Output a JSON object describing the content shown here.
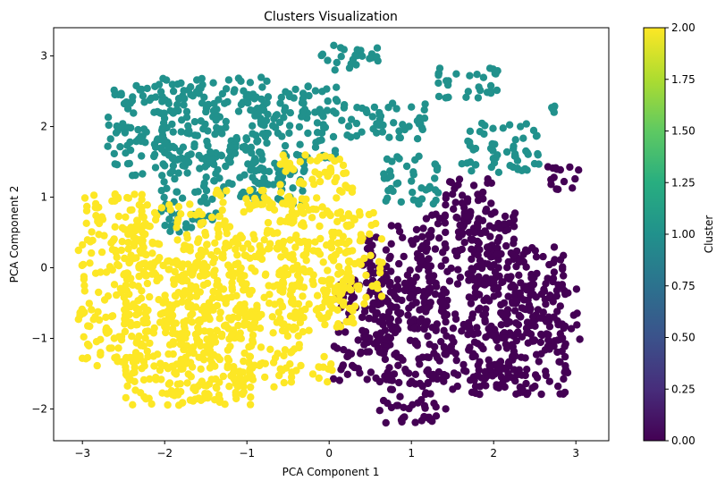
{
  "chart_data": {
    "type": "scatter",
    "title": "Clusters Visualization",
    "xlabel": "PCA Component 1",
    "ylabel": "PCA Component 2",
    "xlim": [
      -3.35,
      3.4
    ],
    "ylim": [
      -2.45,
      3.4
    ],
    "xticks": [
      -3,
      -2,
      -1,
      0,
      1,
      2,
      3
    ],
    "xtick_labels": [
      "−3",
      "−2",
      "−1",
      "0",
      "1",
      "2",
      "3"
    ],
    "yticks": [
      -2,
      -1,
      0,
      1,
      2,
      3
    ],
    "ytick_labels": [
      "−2",
      "−1",
      "0",
      "1",
      "2",
      "3"
    ],
    "grid": false,
    "colormap": "viridis",
    "colorbar": {
      "label": "Cluster",
      "range": [
        0.0,
        2.0
      ],
      "ticks": [
        0.0,
        0.25,
        0.5,
        0.75,
        1.0,
        1.25,
        1.5,
        1.75,
        2.0
      ],
      "tick_labels": [
        "0.00",
        "0.25",
        "0.50",
        "0.75",
        "1.00",
        "1.25",
        "1.50",
        "1.75",
        "2.00"
      ]
    },
    "series": [
      {
        "cluster": 0,
        "color": "#440154",
        "regions": [
          {
            "x_range": [
              0.05,
              0.75
            ],
            "y_range": [
              -1.6,
              -0.05
            ]
          },
          {
            "x_range": [
              0.6,
              1.45
            ],
            "y_range": [
              -2.2,
              -0.2
            ]
          },
          {
            "x_range": [
              0.4,
              1.2
            ],
            "y_range": [
              -0.9,
              0.6
            ]
          },
          {
            "x_range": [
              1.1,
              2.3
            ],
            "y_range": [
              -1.8,
              0.8
            ]
          },
          {
            "x_range": [
              1.4,
              2.0
            ],
            "y_range": [
              0.2,
              1.3
            ]
          },
          {
            "x_range": [
              1.7,
              2.9
            ],
            "y_range": [
              -1.8,
              0.3
            ]
          },
          {
            "x_range": [
              2.35,
              3.05
            ],
            "y_range": [
              -1.2,
              -0.2
            ]
          },
          {
            "x_range": [
              2.6,
              3.1
            ],
            "y_range": [
              1.1,
              1.45
            ]
          }
        ]
      },
      {
        "cluster": 1,
        "color": "#21918c",
        "regions": [
          {
            "x_range": [
              -2.7,
              -1.7
            ],
            "y_range": [
              1.3,
              2.6
            ]
          },
          {
            "x_range": [
              -2.05,
              -1.35
            ],
            "y_range": [
              0.5,
              2.7
            ]
          },
          {
            "x_range": [
              -1.45,
              -0.75
            ],
            "y_range": [
              1.0,
              2.7
            ]
          },
          {
            "x_range": [
              -0.95,
              -0.25
            ],
            "y_range": [
              0.9,
              2.6
            ]
          },
          {
            "x_range": [
              -0.35,
              0.1
            ],
            "y_range": [
              1.5,
              2.6
            ]
          },
          {
            "x_range": [
              -0.1,
              0.65
            ],
            "y_range": [
              2.8,
              3.17
            ]
          },
          {
            "x_range": [
              0.15,
              1.2
            ],
            "y_range": [
              1.8,
              2.35
            ]
          },
          {
            "x_range": [
              0.65,
              1.35
            ],
            "y_range": [
              0.9,
              1.6
            ]
          },
          {
            "x_range": [
              1.3,
              2.1
            ],
            "y_range": [
              2.4,
              2.85
            ]
          },
          {
            "x_range": [
              1.6,
              2.55
            ],
            "y_range": [
              1.35,
              2.05
            ]
          },
          {
            "x_range": [
              2.7,
              2.75
            ],
            "y_range": [
              2.2,
              2.3
            ]
          }
        ]
      },
      {
        "cluster": 2,
        "color": "#fde725",
        "regions": [
          {
            "x_range": [
              -3.05,
              -2.2
            ],
            "y_range": [
              -1.4,
              1.05
            ]
          },
          {
            "x_range": [
              -2.5,
              -1.4
            ],
            "y_range": [
              -1.95,
              0.9
            ]
          },
          {
            "x_range": [
              -2.0,
              -0.9
            ],
            "y_range": [
              -1.95,
              0.3
            ]
          },
          {
            "x_range": [
              -1.4,
              -0.3
            ],
            "y_range": [
              -1.7,
              1.1
            ]
          },
          {
            "x_range": [
              -0.6,
              0.3
            ],
            "y_range": [
              -0.9,
              1.6
            ]
          },
          {
            "x_range": [
              0.0,
              0.65
            ],
            "y_range": [
              -0.6,
              0.8
            ]
          },
          {
            "x_range": [
              -0.2,
              0.05
            ],
            "y_range": [
              -1.65,
              -1.2
            ]
          }
        ]
      }
    ]
  }
}
